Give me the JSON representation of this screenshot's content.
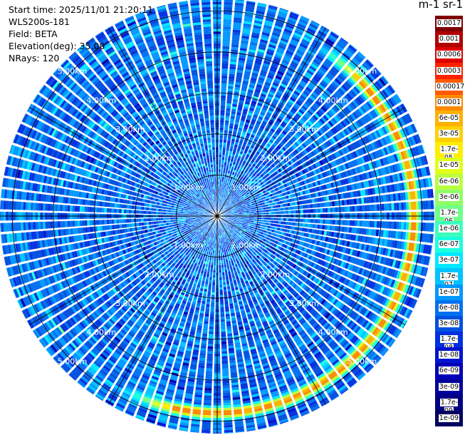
{
  "info": {
    "start_time": "Start time: 2025/11/01 21:20:11",
    "instrument": "WLS200s-181",
    "field": "Field: BETA",
    "elevation": "Elevation(deg): 35.00",
    "nrays": "NRays: 120"
  },
  "colorbar": {
    "title": "m-1 sr-1",
    "labels": [
      "0.0017",
      "0.001",
      "0.0006",
      "0.0003",
      "0.00017",
      "0.0001",
      "6e-05",
      "3e-05",
      "1.7e-05",
      "1e-05",
      "6e-06",
      "3e-06",
      "1.7e-06",
      "1e-06",
      "6e-07",
      "3e-07",
      "1.7e-07",
      "1e-07",
      "6e-08",
      "3e-08",
      "1.7e-08",
      "1e-08",
      "6e-09",
      "3e-09",
      "1.7e-09",
      "1e-09"
    ],
    "colors": [
      "#800000",
      "#b00000",
      "#dd0000",
      "#ff2200",
      "#ff5a00",
      "#ff8a00",
      "#ffb000",
      "#ffd000",
      "#ffee00",
      "#e0ff1a",
      "#b8ff40",
      "#90ff66",
      "#70ff88",
      "#3cffba",
      "#1affe0",
      "#00e8ff",
      "#00c4ff",
      "#0098ff",
      "#0070f0",
      "#0050e0",
      "#0030e0",
      "#0014d0",
      "#0000b8",
      "#00009a",
      "#000080",
      "#000060"
    ]
  },
  "chart_data": {
    "type": "heatmap",
    "projection": "polar (PPI)",
    "field": "BETA",
    "elevation_deg": 35.0,
    "n_rays": 120,
    "max_range_km": 5.3,
    "range_ring_labels": [
      "1.00km",
      "2.00km",
      "3.00km",
      "4.00km",
      "5.00km"
    ],
    "range_rings_km": [
      1,
      2,
      3,
      4,
      5
    ],
    "colorscale": "jet (log)",
    "value_range": [
      1e-09,
      0.0017
    ],
    "features": {
      "background_beta": "about 3e-08 (blue/cyan)",
      "high_beta_ring_km": 4.8,
      "high_beta_ring_peak": "about 0.0003 (red)",
      "high_beta_ring_azimuth_span_deg": [
        30,
        210
      ]
    }
  }
}
